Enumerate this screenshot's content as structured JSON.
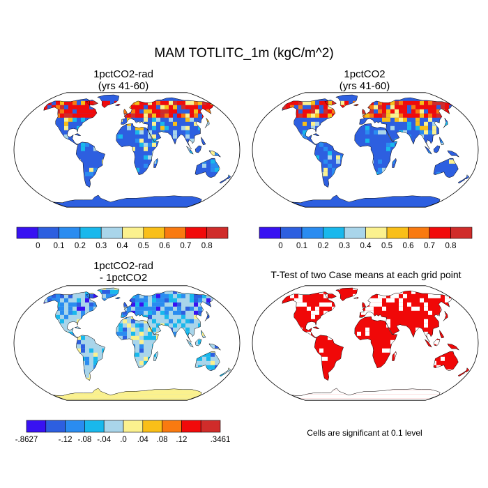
{
  "figure": {
    "title": "MAM TOTLITC_1m (kgC/m^2)"
  },
  "panels": [
    {
      "id": "rad",
      "title_line1": "1pctCO2-rad",
      "title_line2": "(yrs 41-60)",
      "palette": "main",
      "style": "high"
    },
    {
      "id": "co2",
      "title_line1": "1pctCO2",
      "title_line2": "(yrs 41-60)",
      "palette": "main",
      "style": "high"
    },
    {
      "id": "diff",
      "title_line1": "1pctCO2-rad",
      "title_line2": "- 1pctCO2",
      "palette": "diff",
      "style": "diff"
    },
    {
      "id": "ttest",
      "title_line1": "T-Test of two Case means at each grid point",
      "title_line2": "",
      "palette": "sig",
      "style": "sig"
    }
  ],
  "colorbars": {
    "main": {
      "colors": [
        "#3812f2",
        "#2d5fe0",
        "#2a8cf0",
        "#19b8ec",
        "#a9d5ea",
        "#fbf18e",
        "#f9bf18",
        "#f97a10",
        "#f10a0a",
        "#d02c2a"
      ],
      "labels": [
        "0",
        "0.1",
        "0.2",
        "0.3",
        "0.4",
        "0.5",
        "0.6",
        "0.7",
        "0.8"
      ]
    },
    "diff": {
      "colors": [
        "#3812f2",
        "#2d5fe0",
        "#2a8cf0",
        "#19b8ec",
        "#a9d5ea",
        "#fbf18e",
        "#f9bf18",
        "#f97a10",
        "#f10a0a",
        "#d02c2a"
      ],
      "labels": [
        "-.12",
        "-.08",
        "-.04",
        ".0",
        ".04",
        ".08",
        ".12"
      ],
      "min_label": "-.8627",
      "max_label": ".3461"
    }
  },
  "ttest_note": "Cells are significant at 0.1 level",
  "sig_color": "#f00808"
}
